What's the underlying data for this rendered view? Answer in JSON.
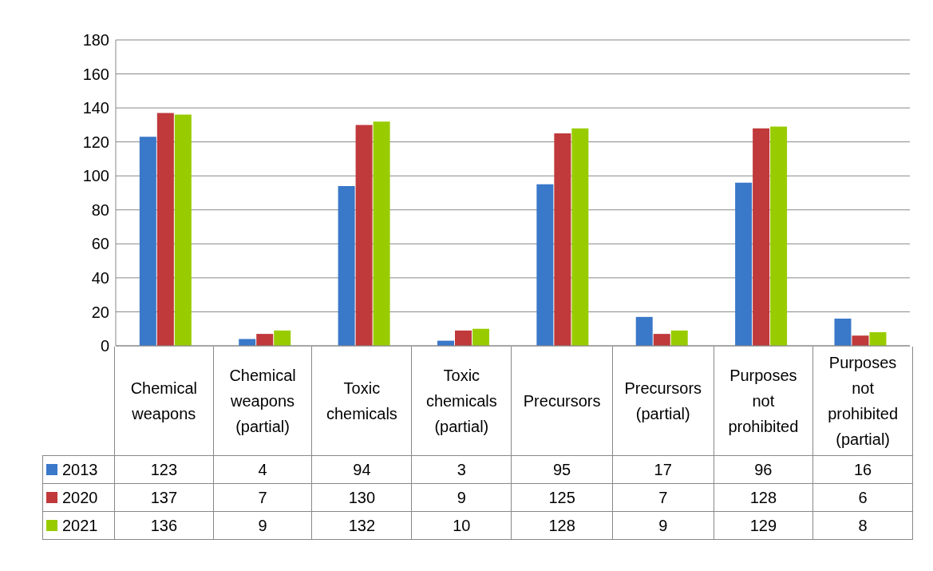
{
  "chart_data": {
    "type": "bar",
    "categories": [
      "Chemical weapons",
      "Chemical weapons (partial)",
      "Toxic chemicals",
      "Toxic chemicals (partial)",
      "Precursors",
      "Precursors (partial)",
      "Purposes not prohibited",
      "Purposes not prohibited (partial)"
    ],
    "series": [
      {
        "name": "2013",
        "color": "#3a78c9",
        "values": [
          123,
          4,
          94,
          3,
          95,
          17,
          96,
          16
        ]
      },
      {
        "name": "2020",
        "color": "#c0393b",
        "values": [
          137,
          7,
          130,
          9,
          125,
          7,
          128,
          6
        ]
      },
      {
        "name": "2021",
        "color": "#99cc00",
        "values": [
          136,
          9,
          132,
          10,
          128,
          9,
          129,
          8
        ]
      }
    ],
    "ylim": [
      0,
      180
    ],
    "yticks": [
      0,
      20,
      40,
      60,
      80,
      100,
      120,
      140,
      160,
      180
    ],
    "grid": "y",
    "legend": "bottom",
    "data_labels": true
  }
}
